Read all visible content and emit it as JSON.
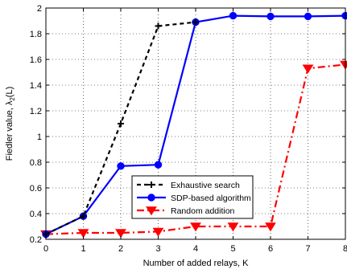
{
  "chart_data": {
    "type": "line",
    "xlabel": "Number of added relays, K",
    "ylabel_main": "Fiedler value, λ",
    "ylabel_sub": "2",
    "ylabel_tail": "(L)",
    "xlim": [
      0,
      8
    ],
    "ylim": [
      0.2,
      2
    ],
    "x_ticks": [
      0,
      1,
      2,
      3,
      4,
      5,
      6,
      7,
      8
    ],
    "y_ticks": [
      0.2,
      0.4,
      0.6,
      0.8,
      1,
      1.2,
      1.4,
      1.6,
      1.8,
      2
    ],
    "grid": true,
    "legend_position": "bottom-center",
    "series": [
      {
        "name": "Exhaustive search",
        "color": "#000000",
        "line_style": "dashed",
        "marker": "plus",
        "x": [
          0,
          1,
          2,
          3,
          4
        ],
        "y": [
          0.24,
          0.38,
          1.1,
          1.86,
          1.89
        ]
      },
      {
        "name": "SDP-based algorithm",
        "color": "#0000ff",
        "line_style": "solid",
        "marker": "circle",
        "x": [
          0,
          1,
          2,
          3,
          4,
          5,
          6,
          7,
          8
        ],
        "y": [
          0.24,
          0.38,
          0.77,
          0.78,
          1.89,
          1.94,
          1.935,
          1.935,
          1.94
        ]
      },
      {
        "name": "Random addition",
        "color": "#ff0000",
        "line_style": "dashdot",
        "marker": "triangle-down",
        "x": [
          0,
          1,
          2,
          3,
          4,
          5,
          6,
          7,
          8
        ],
        "y": [
          0.24,
          0.25,
          0.25,
          0.26,
          0.3,
          0.3,
          0.3,
          1.53,
          1.56
        ]
      }
    ]
  }
}
